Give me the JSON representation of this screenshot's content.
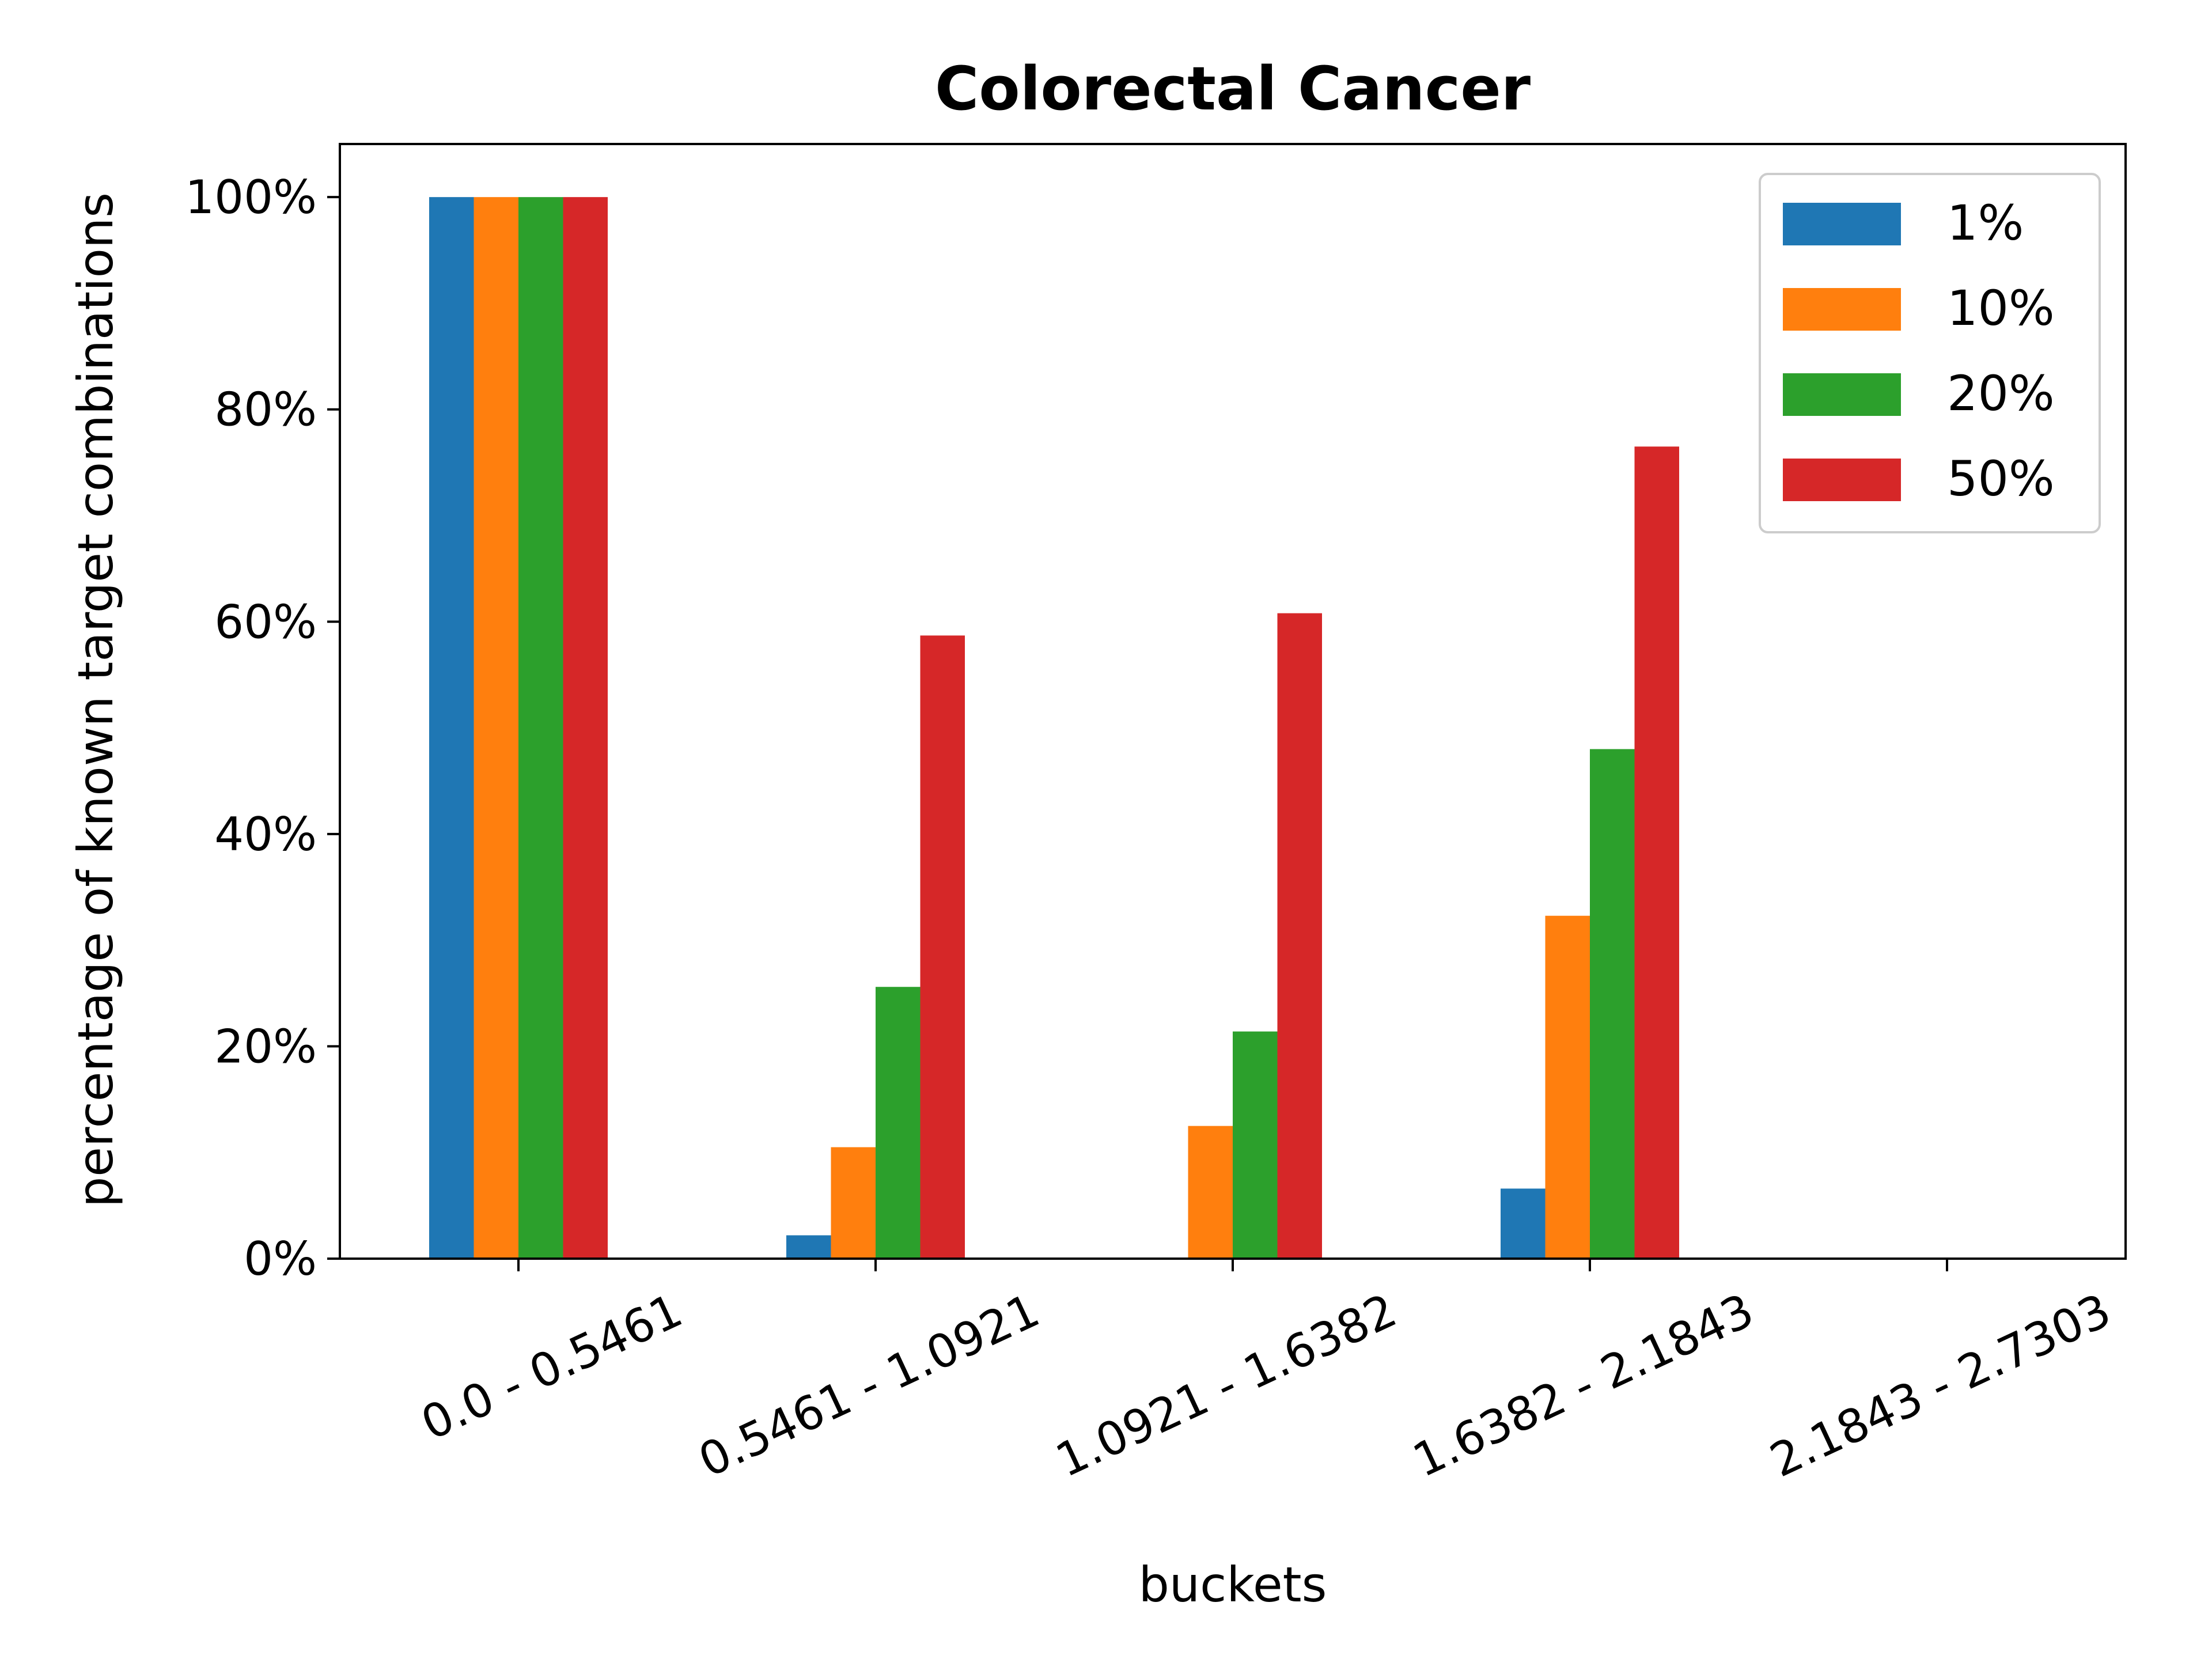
{
  "chart_data": {
    "type": "bar",
    "title": "Colorectal Cancer",
    "xlabel": "buckets",
    "ylabel": "percentage of known target combinations",
    "categories": [
      "0.0 - 0.5461",
      "0.5461 - 1.0921",
      "1.0921 - 1.6382",
      "1.6382 - 2.1843",
      "2.1843 - 2.7303"
    ],
    "series": [
      {
        "name": "1%",
        "color": "#1f77b4",
        "values": [
          100,
          2.2,
          0,
          6.6,
          0
        ]
      },
      {
        "name": "10%",
        "color": "#ff7f0e",
        "values": [
          100,
          10.5,
          12.5,
          32.3,
          0
        ]
      },
      {
        "name": "20%",
        "color": "#2ca02c",
        "values": [
          100,
          25.6,
          21.4,
          48.0,
          0
        ]
      },
      {
        "name": "50%",
        "color": "#d62728",
        "values": [
          100,
          58.7,
          60.8,
          76.5,
          0
        ]
      }
    ],
    "ylim": [
      0,
      105
    ],
    "yticks": [
      0,
      20,
      40,
      60,
      80,
      100
    ],
    "ytick_labels": [
      "0%",
      "20%",
      "40%",
      "60%",
      "80%",
      "100%"
    ],
    "legend_position": "top-right",
    "grid": false
  }
}
